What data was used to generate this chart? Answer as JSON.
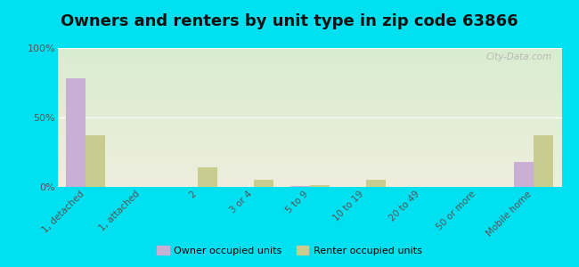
{
  "title": "Owners and renters by unit type in zip code 63866",
  "categories": [
    "1, detached",
    "1, attached",
    "2",
    "3 or 4",
    "5 to 9",
    "10 to 19",
    "20 to 49",
    "50 or more",
    "Mobile home"
  ],
  "owner_values": [
    78,
    0,
    0,
    0,
    0.5,
    0,
    0,
    0,
    18
  ],
  "renter_values": [
    37,
    0,
    14,
    5,
    1.5,
    5,
    0,
    0,
    37
  ],
  "owner_color": "#c9afd4",
  "renter_color": "#c8cc8e",
  "background_outer": "#00e0f0",
  "bg_top_color": "#d8ecd0",
  "bg_bottom_color": "#eeeedd",
  "yticks": [
    0,
    50,
    100
  ],
  "ylim": [
    0,
    100
  ],
  "ylabel_labels": [
    "0%",
    "50%",
    "100%"
  ],
  "watermark": "City-Data.com",
  "legend_owner": "Owner occupied units",
  "legend_renter": "Renter occupied units",
  "bar_width": 0.35,
  "title_fontsize": 13
}
